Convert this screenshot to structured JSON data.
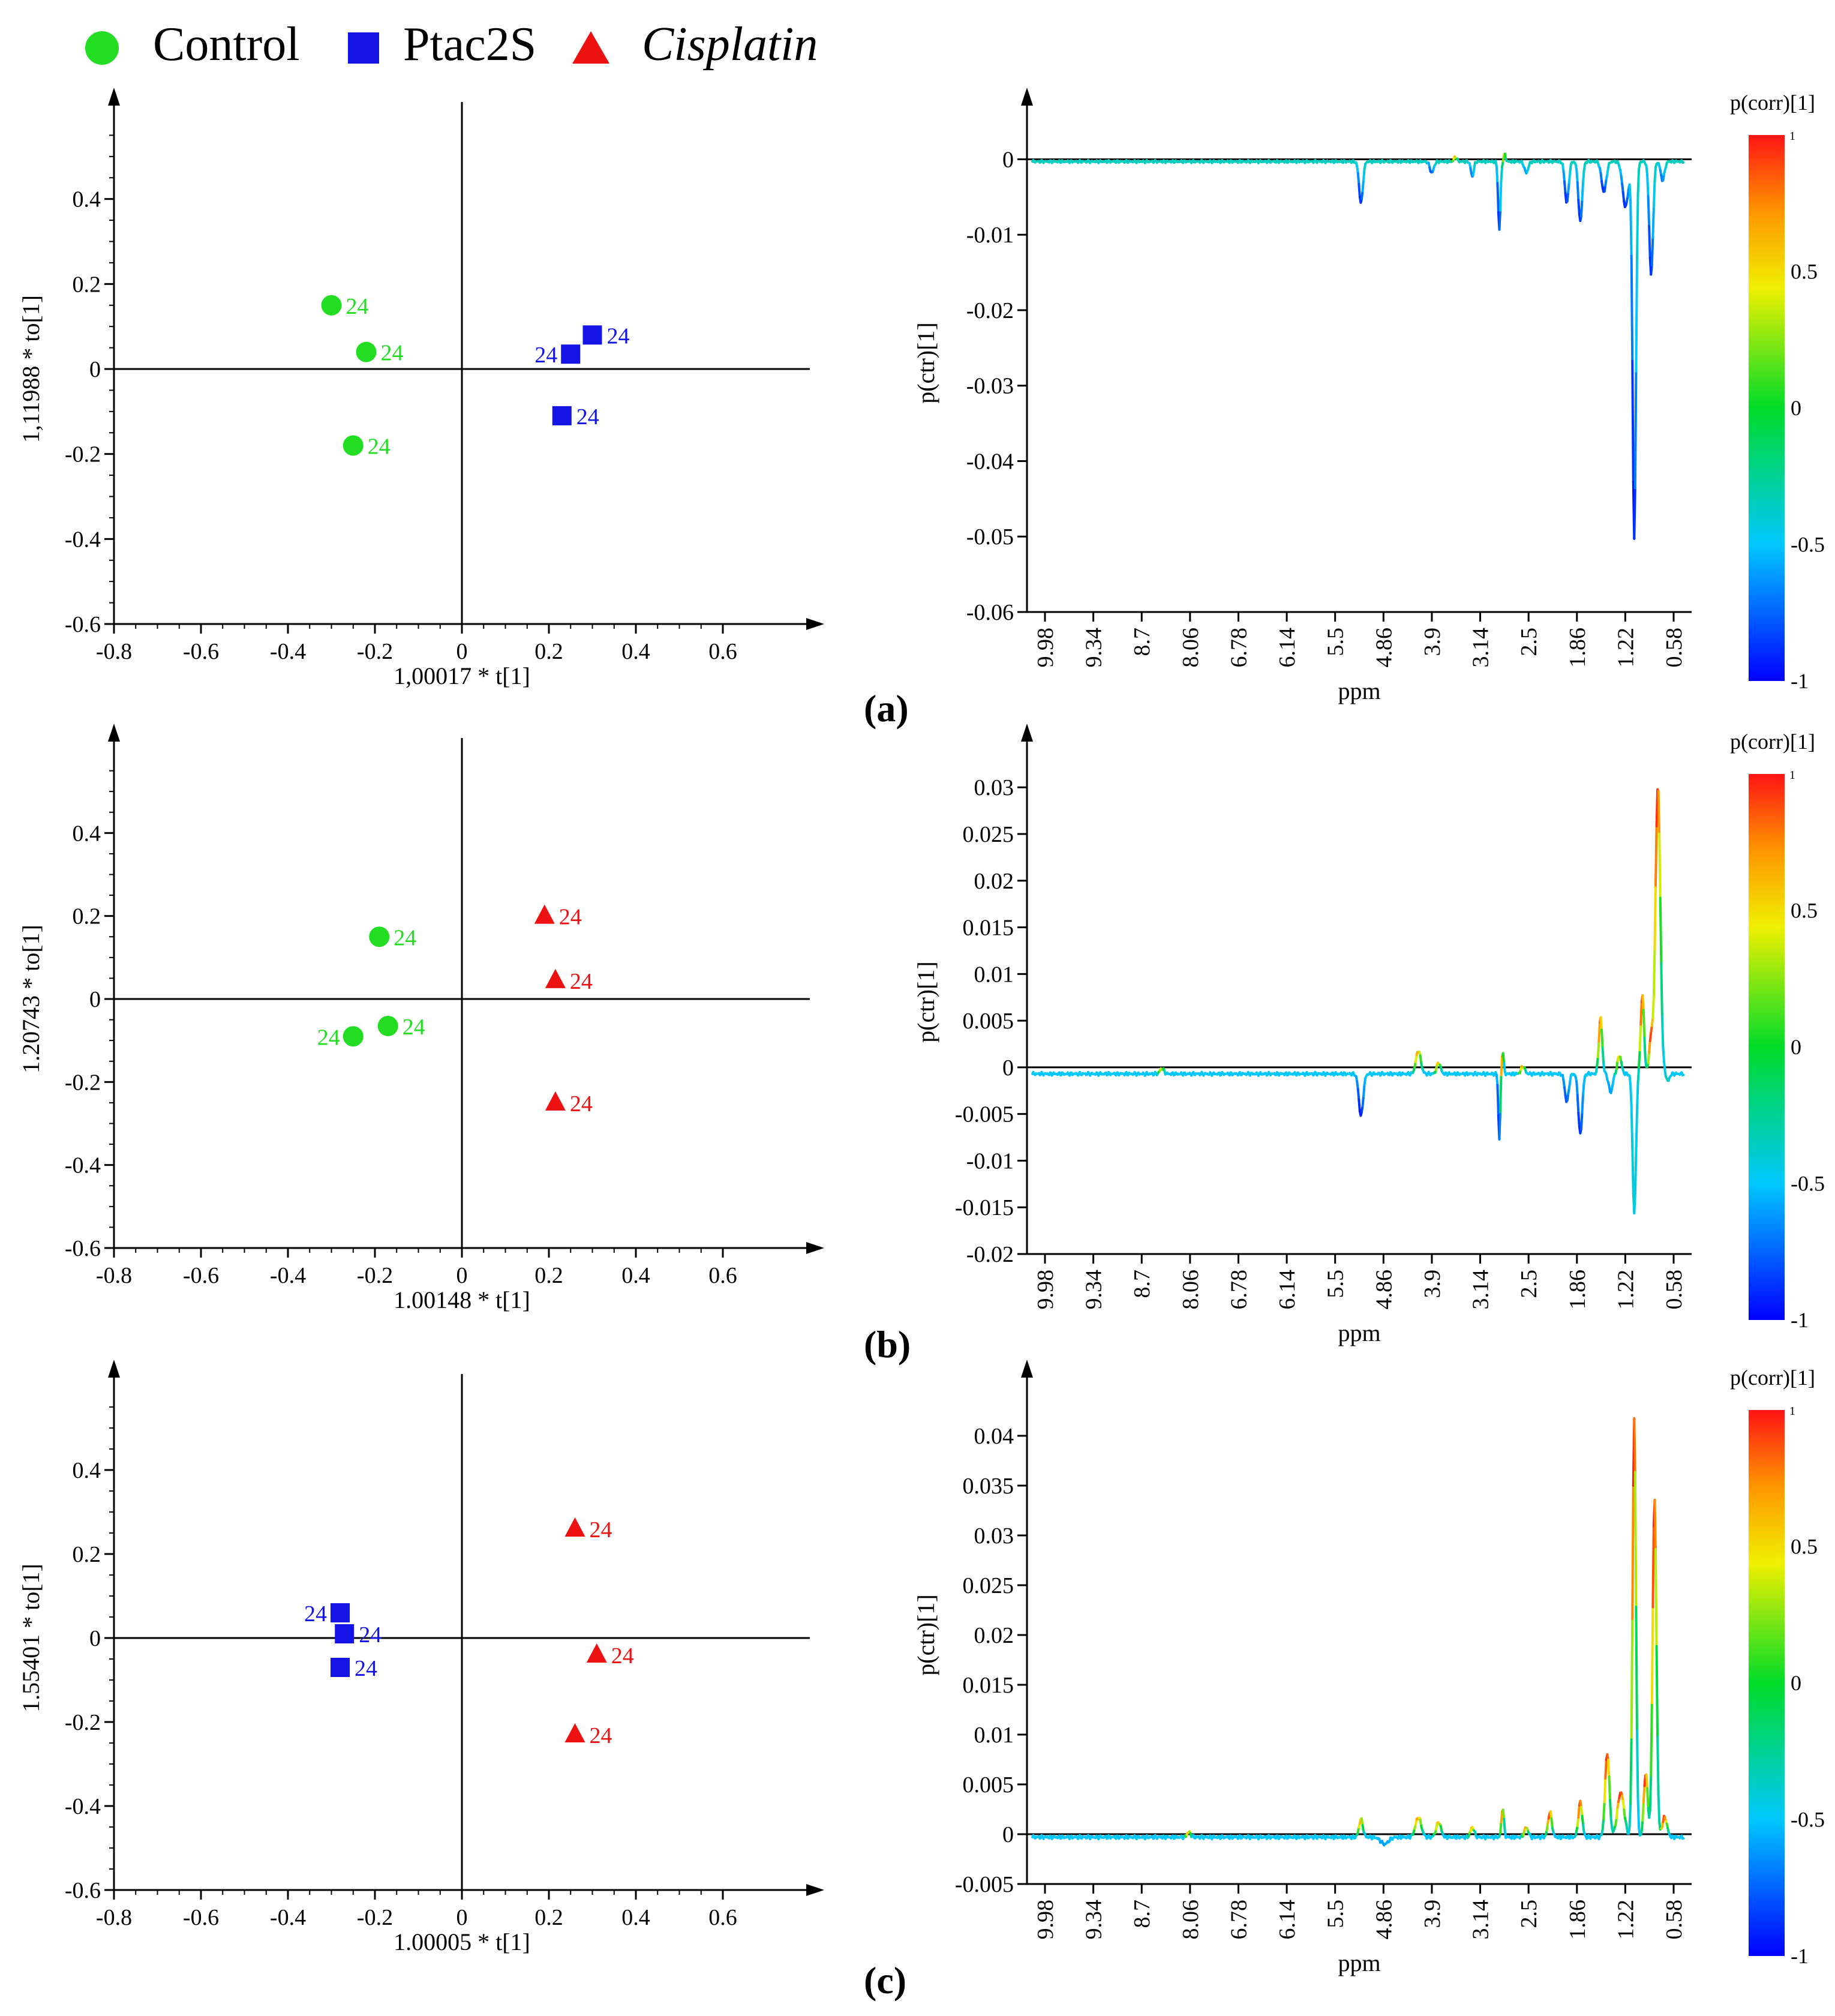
{
  "legend": [
    {
      "label": "Control",
      "shape": "circle",
      "color": "#22dd22",
      "italic": false
    },
    {
      "label": "Ptac2S",
      "shape": "square",
      "color": "#1414e6",
      "italic": false
    },
    {
      "label": "Cisplatin",
      "shape": "triangle",
      "color": "#ee1111",
      "italic": true
    }
  ],
  "colors": {
    "Control": "#22dd22",
    "Ptac2S": "#1414e6",
    "Cisplatin": "#ee1111"
  },
  "chart_data": [
    {
      "id": "a-score",
      "type": "scatter",
      "panel": "a",
      "xlabel": "1,00017 * t[1]",
      "ylabel": "1,11988 * to[1]",
      "xlim": [
        -0.8,
        0.8
      ],
      "ylim": [
        -0.6,
        0.6
      ],
      "xticks": [
        "-0.8",
        "-0.6",
        "-0.4",
        "-0.2",
        "0",
        "0.2",
        "0.4",
        "0.6"
      ],
      "yticks": [
        "-0.6",
        "-0.4",
        "-0.2",
        "0",
        "0.2",
        "0.4"
      ],
      "series": [
        {
          "name": "Control",
          "points": [
            {
              "x": -0.3,
              "y": 0.15,
              "label": "24",
              "side": "right"
            },
            {
              "x": -0.22,
              "y": 0.04,
              "label": "24",
              "side": "right"
            },
            {
              "x": -0.25,
              "y": -0.18,
              "label": "24",
              "side": "right"
            }
          ]
        },
        {
          "name": "Ptac2S",
          "points": [
            {
              "x": 0.3,
              "y": 0.08,
              "label": "24",
              "side": "right"
            },
            {
              "x": 0.25,
              "y": 0.035,
              "label": "24",
              "side": "left"
            },
            {
              "x": 0.23,
              "y": -0.11,
              "label": "24",
              "side": "right"
            }
          ]
        }
      ]
    },
    {
      "id": "a-loading",
      "type": "line",
      "panel": "a",
      "xlabel": "ppm",
      "ylabel": "p(ctr)[1]",
      "colorbar_title": "p(corr)[1]",
      "colorbar_ticks": [
        "0.5",
        "0",
        "-0.5",
        "-1"
      ],
      "colorbar_top": "1",
      "xticks": [
        "9.98",
        "9.34",
        "8.7",
        "8.06",
        "6.78",
        "6.14",
        "5.5",
        "4.86",
        "3.9",
        "3.14",
        "2.5",
        "1.86",
        "1.22",
        "0.58"
      ],
      "ylim": [
        -0.06,
        0.006
      ],
      "yticks": [
        "0",
        "-0.01",
        "-0.02",
        "-0.03",
        "-0.04",
        "-0.05",
        "-0.06"
      ],
      "ytick_values": [
        0,
        -0.01,
        -0.02,
        -0.03,
        -0.04,
        -0.05,
        -0.06
      ],
      "baseline": -0.0003,
      "baseline_corr": -0.35,
      "baseline_noise": 0.0002,
      "peaks": [
        {
          "ppm": 5.25,
          "h": -0.0055,
          "w": 0.04,
          "corr": -0.9
        },
        {
          "ppm": 4.2,
          "h": -0.0015,
          "w": 0.04,
          "corr": -0.8
        },
        {
          "ppm": 3.85,
          "h": 0.0006,
          "w": 0.03,
          "corr": 0.6
        },
        {
          "ppm": 3.6,
          "h": -0.002,
          "w": 0.03,
          "corr": -0.7
        },
        {
          "ppm": 3.2,
          "h": -0.009,
          "w": 0.025,
          "corr": -0.9
        },
        {
          "ppm": 3.12,
          "h": 0.001,
          "w": 0.02,
          "corr": 0.4
        },
        {
          "ppm": 2.8,
          "h": -0.0015,
          "w": 0.04,
          "corr": -0.6
        },
        {
          "ppm": 2.2,
          "h": -0.0055,
          "w": 0.04,
          "corr": -0.9
        },
        {
          "ppm": 2.0,
          "h": -0.008,
          "w": 0.04,
          "corr": -0.9
        },
        {
          "ppm": 1.65,
          "h": -0.004,
          "w": 0.05,
          "corr": -0.9
        },
        {
          "ppm": 1.33,
          "h": -0.006,
          "w": 0.06,
          "corr": -0.9
        },
        {
          "ppm": 1.2,
          "h": -0.05,
          "w": 0.035,
          "corr": -0.95
        },
        {
          "ppm": 0.95,
          "h": -0.015,
          "w": 0.04,
          "corr": -0.9
        },
        {
          "ppm": 0.78,
          "h": -0.0025,
          "w": 0.04,
          "corr": -0.7
        }
      ]
    },
    {
      "id": "b-score",
      "type": "scatter",
      "panel": "b",
      "xlabel": "1.00148 * t[1]",
      "ylabel": "1.20743 * to[1]",
      "xlim": [
        -0.8,
        0.8
      ],
      "ylim": [
        -0.6,
        0.6
      ],
      "xticks": [
        "-0.8",
        "-0.6",
        "-0.4",
        "-0.2",
        "0",
        "0.2",
        "0.4",
        "0.6"
      ],
      "yticks": [
        "-0.6",
        "-0.4",
        "-0.2",
        "0",
        "0.2",
        "0.4"
      ],
      "series": [
        {
          "name": "Control",
          "points": [
            {
              "x": -0.19,
              "y": 0.15,
              "label": "24",
              "side": "right"
            },
            {
              "x": -0.17,
              "y": -0.065,
              "label": "24",
              "side": "right"
            },
            {
              "x": -0.25,
              "y": -0.09,
              "label": "24",
              "side": "left"
            }
          ]
        },
        {
          "name": "Cisplatin",
          "points": [
            {
              "x": 0.19,
              "y": 0.2,
              "label": "24",
              "side": "right"
            },
            {
              "x": 0.215,
              "y": 0.045,
              "label": "24",
              "side": "right"
            },
            {
              "x": 0.215,
              "y": -0.25,
              "label": "24",
              "side": "right"
            }
          ]
        }
      ]
    },
    {
      "id": "b-loading",
      "type": "line",
      "panel": "b",
      "xlabel": "ppm",
      "ylabel": "p(ctr)[1]",
      "colorbar_title": "p(corr)[1]",
      "colorbar_ticks": [
        "0.5",
        "0",
        "-0.5",
        "-1"
      ],
      "colorbar_top": "1",
      "xticks": [
        "9.98",
        "9.34",
        "8.7",
        "8.06",
        "6.78",
        "6.14",
        "5.5",
        "4.86",
        "3.9",
        "3.14",
        "2.5",
        "1.86",
        "1.22",
        "0.58"
      ],
      "ylim": [
        -0.02,
        0.034
      ],
      "yticks": [
        "0.03",
        "0.025",
        "0.02",
        "0.015",
        "0.01",
        "0.005",
        "0",
        "-0.005",
        "-0.01",
        "-0.015",
        "-0.02"
      ],
      "ytick_values": [
        0.03,
        0.025,
        0.02,
        0.015,
        0.01,
        0.005,
        0,
        -0.005,
        -0.01,
        -0.015,
        -0.02
      ],
      "baseline": -0.0007,
      "baseline_corr": -0.5,
      "baseline_noise": 0.0002,
      "peaks": [
        {
          "ppm": 8.2,
          "h": 0.0006,
          "w": 0.04,
          "corr": 0.4
        },
        {
          "ppm": 5.25,
          "h": -0.0045,
          "w": 0.045,
          "corr": -0.95
        },
        {
          "ppm": 4.4,
          "h": 0.0025,
          "w": 0.05,
          "corr": 0.7
        },
        {
          "ppm": 4.1,
          "h": 0.0012,
          "w": 0.04,
          "corr": 0.6
        },
        {
          "ppm": 3.2,
          "h": -0.007,
          "w": 0.02,
          "corr": -0.9
        },
        {
          "ppm": 3.15,
          "h": 0.0025,
          "w": 0.02,
          "corr": 0.85
        },
        {
          "ppm": 2.85,
          "h": 0.0008,
          "w": 0.04,
          "corr": 0.7
        },
        {
          "ppm": 2.2,
          "h": -0.003,
          "w": 0.04,
          "corr": -0.8
        },
        {
          "ppm": 2.0,
          "h": -0.0065,
          "w": 0.04,
          "corr": -0.9
        },
        {
          "ppm": 1.7,
          "h": 0.006,
          "w": 0.035,
          "corr": 0.8
        },
        {
          "ppm": 1.55,
          "h": -0.002,
          "w": 0.04,
          "corr": -0.6
        },
        {
          "ppm": 1.42,
          "h": 0.002,
          "w": 0.04,
          "corr": 0.5
        },
        {
          "ppm": 1.2,
          "h": -0.015,
          "w": 0.035,
          "corr": -0.4
        },
        {
          "ppm": 1.08,
          "h": 0.0085,
          "w": 0.035,
          "corr": 0.9
        },
        {
          "ppm": 0.95,
          "h": 0.004,
          "w": 0.04,
          "corr": 0.9
        },
        {
          "ppm": 0.85,
          "h": 0.031,
          "w": 0.05,
          "corr": 0.95
        },
        {
          "ppm": 0.7,
          "h": -0.0008,
          "w": 0.03,
          "corr": -0.3
        }
      ]
    },
    {
      "id": "c-score",
      "type": "scatter",
      "panel": "c",
      "xlabel": "1.00005 * t[1]",
      "ylabel": "1.55401 * to[1]",
      "xlim": [
        -0.8,
        0.8
      ],
      "ylim": [
        -0.6,
        0.6
      ],
      "xticks": [
        "-0.8",
        "-0.6",
        "-0.4",
        "-0.2",
        "0",
        "0.2",
        "0.4",
        "0.6"
      ],
      "yticks": [
        "-0.6",
        "-0.4",
        "-0.2",
        "0",
        "0.2",
        "0.4"
      ],
      "series": [
        {
          "name": "Ptac2S",
          "points": [
            {
              "x": -0.28,
              "y": 0.06,
              "label": "24",
              "side": "left"
            },
            {
              "x": -0.27,
              "y": 0.01,
              "label": "24",
              "side": "right"
            },
            {
              "x": -0.28,
              "y": -0.07,
              "label": "24",
              "side": "right"
            }
          ]
        },
        {
          "name": "Cisplatin",
          "points": [
            {
              "x": 0.26,
              "y": 0.26,
              "label": "24",
              "side": "right"
            },
            {
              "x": 0.31,
              "y": -0.04,
              "label": "24",
              "side": "right"
            },
            {
              "x": 0.26,
              "y": -0.23,
              "label": "24",
              "side": "right"
            }
          ]
        }
      ]
    },
    {
      "id": "c-loading",
      "type": "line",
      "panel": "c",
      "xlabel": "ppm",
      "ylabel": "p(ctr)[1]",
      "colorbar_title": "p(corr)[1]",
      "colorbar_ticks": [
        "0.5",
        "0",
        "-0.5",
        "-1"
      ],
      "colorbar_top": "1",
      "xticks": [
        "9.98",
        "9.34",
        "8.7",
        "8.06",
        "6.78",
        "6.14",
        "5.5",
        "4.86",
        "3.9",
        "3.14",
        "2.5",
        "1.86",
        "1.22",
        "0.58"
      ],
      "ylim": [
        -0.005,
        0.045
      ],
      "yticks": [
        "0.04",
        "0.035",
        "0.03",
        "0.025",
        "0.02",
        "0.015",
        "0.01",
        "0.005",
        "0",
        "-0.005"
      ],
      "ytick_values": [
        0.04,
        0.035,
        0.03,
        0.025,
        0.02,
        0.015,
        0.01,
        0.005,
        0,
        -0.005
      ],
      "baseline": -0.0003,
      "baseline_corr": -0.5,
      "baseline_noise": 0.0002,
      "peaks": [
        {
          "ppm": 7.8,
          "h": 0.0005,
          "w": 0.04,
          "corr": 0.6
        },
        {
          "ppm": 5.25,
          "h": 0.0018,
          "w": 0.04,
          "corr": 0.6
        },
        {
          "ppm": 4.9,
          "h": -0.0007,
          "w": 0.08,
          "corr": -0.6
        },
        {
          "ppm": 4.4,
          "h": 0.002,
          "w": 0.06,
          "corr": 0.7
        },
        {
          "ppm": 4.1,
          "h": 0.0015,
          "w": 0.05,
          "corr": 0.6
        },
        {
          "ppm": 3.6,
          "h": 0.001,
          "w": 0.04,
          "corr": 0.6
        },
        {
          "ppm": 3.15,
          "h": 0.003,
          "w": 0.025,
          "corr": 0.8
        },
        {
          "ppm": 2.8,
          "h": 0.001,
          "w": 0.04,
          "corr": 0.7
        },
        {
          "ppm": 2.45,
          "h": 0.0025,
          "w": 0.04,
          "corr": 0.9
        },
        {
          "ppm": 2.0,
          "h": 0.0035,
          "w": 0.04,
          "corr": 0.9
        },
        {
          "ppm": 1.6,
          "h": 0.0085,
          "w": 0.045,
          "corr": 0.95
        },
        {
          "ppm": 1.4,
          "h": 0.0045,
          "w": 0.07,
          "corr": 0.95
        },
        {
          "ppm": 1.2,
          "h": 0.042,
          "w": 0.035,
          "corr": 0.98
        },
        {
          "ppm": 1.03,
          "h": 0.0065,
          "w": 0.04,
          "corr": 0.95
        },
        {
          "ppm": 0.9,
          "h": 0.034,
          "w": 0.04,
          "corr": 0.98
        },
        {
          "ppm": 0.75,
          "h": 0.002,
          "w": 0.05,
          "corr": 0.9
        }
      ]
    }
  ],
  "panel_labels": [
    "(a)",
    "(b)",
    "(c)"
  ]
}
